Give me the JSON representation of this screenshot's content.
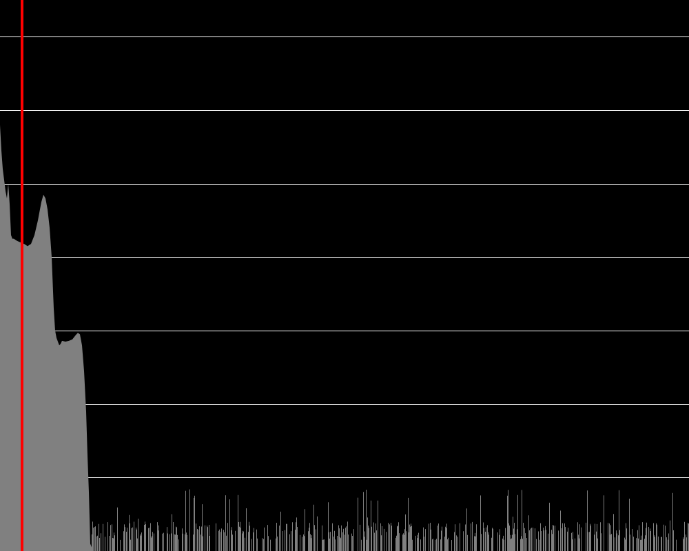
{
  "chart_data": {
    "type": "area",
    "title": "",
    "xlabel": "",
    "ylabel": "",
    "xlim": [
      0,
      1000
    ],
    "ylim": [
      0,
      7.5
    ],
    "grid": true,
    "legend": "none",
    "marker_x": 32,
    "series": [
      {
        "x": [
          0,
          2,
          4,
          6,
          8,
          10,
          12,
          14,
          16,
          18,
          20,
          25,
          30,
          35,
          40,
          45,
          50,
          55,
          60,
          63,
          66,
          69,
          72,
          75,
          78,
          80,
          82,
          84,
          86,
          88,
          90,
          95,
          100,
          105,
          110,
          113,
          116,
          119,
          122,
          125,
          127,
          129,
          131,
          133
        ],
        "values": [
          5.8,
          5.45,
          5.2,
          5.05,
          4.9,
          4.8,
          5.0,
          4.72,
          4.3,
          4.25,
          4.25,
          4.22,
          4.2,
          4.18,
          4.15,
          4.18,
          4.3,
          4.5,
          4.75,
          4.85,
          4.8,
          4.65,
          4.4,
          4.0,
          3.3,
          3.0,
          2.9,
          2.85,
          2.8,
          2.82,
          2.86,
          2.85,
          2.86,
          2.88,
          2.94,
          2.97,
          2.95,
          2.8,
          2.45,
          1.9,
          1.3,
          0.8,
          0.1,
          0.05
        ]
      }
    ],
    "noise_range_x": [
      133,
      1000
    ],
    "noise_typical_max": 0.4,
    "noise_peak_max": 0.85
  },
  "colors": {
    "background": "#000000",
    "fill": "#808080",
    "grid": "#ffffff",
    "marker": "#ff0000"
  }
}
